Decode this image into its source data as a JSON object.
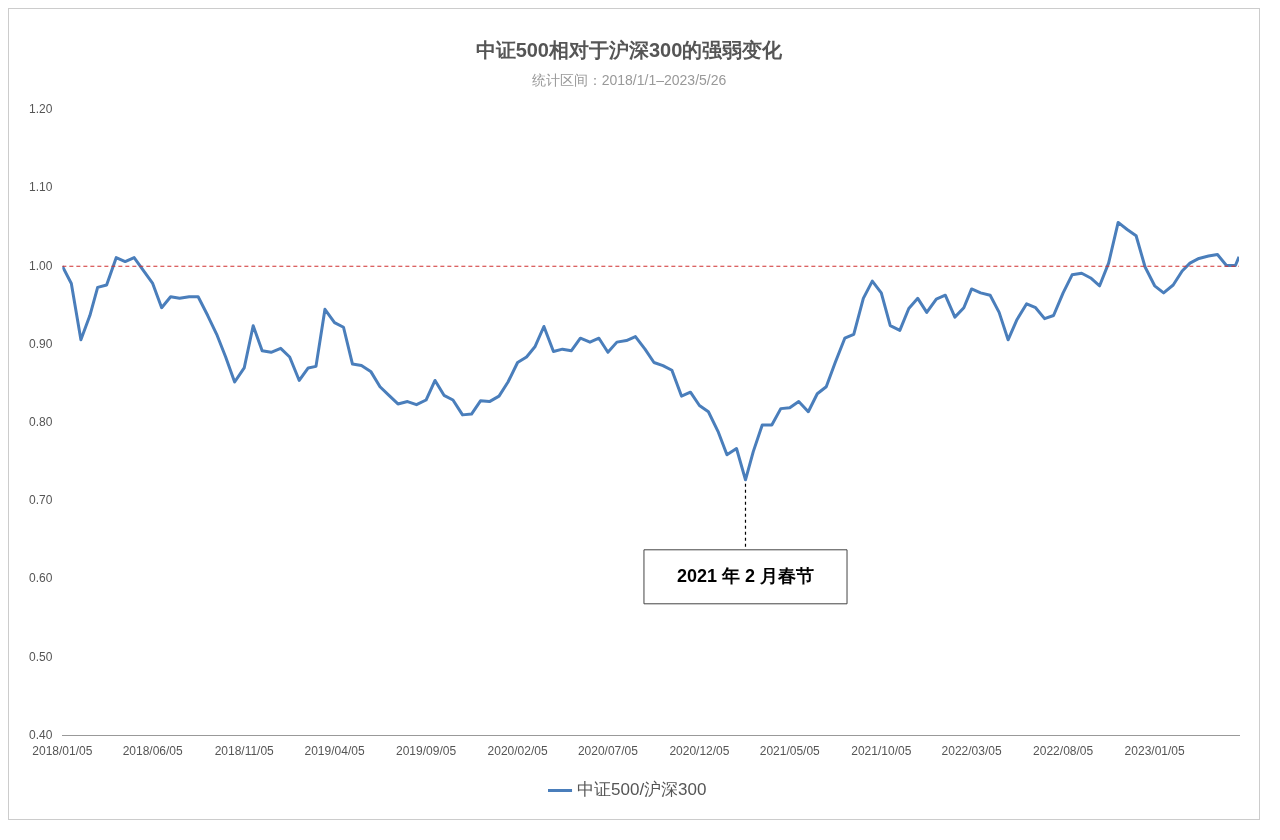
{
  "chart_data": {
    "type": "line",
    "title": "中证500相对于沪深300的强弱变化",
    "subtitle": "统计区间：2018/1/1–2023/5/26",
    "x": [
      "2018-01-05",
      "2018-01-20",
      "2018-02-05",
      "2018-02-20",
      "2018-03-05",
      "2018-03-20",
      "2018-04-05",
      "2018-04-20",
      "2018-05-05",
      "2018-05-20",
      "2018-06-05",
      "2018-06-20",
      "2018-07-05",
      "2018-07-20",
      "2018-08-05",
      "2018-08-20",
      "2018-09-05",
      "2018-09-20",
      "2018-10-05",
      "2018-10-20",
      "2018-11-05",
      "2018-11-20",
      "2018-12-05",
      "2018-12-20",
      "2019-01-05",
      "2019-01-20",
      "2019-02-05",
      "2019-02-20",
      "2019-03-05",
      "2019-03-20",
      "2019-04-05",
      "2019-04-20",
      "2019-05-05",
      "2019-05-20",
      "2019-06-05",
      "2019-06-20",
      "2019-07-05",
      "2019-07-20",
      "2019-08-05",
      "2019-08-20",
      "2019-09-05",
      "2019-09-20",
      "2019-10-05",
      "2019-10-20",
      "2019-11-05",
      "2019-11-20",
      "2019-12-05",
      "2019-12-20",
      "2020-01-05",
      "2020-01-20",
      "2020-02-05",
      "2020-02-20",
      "2020-03-05",
      "2020-03-20",
      "2020-04-05",
      "2020-04-20",
      "2020-05-05",
      "2020-05-20",
      "2020-06-05",
      "2020-06-20",
      "2020-07-05",
      "2020-07-20",
      "2020-08-05",
      "2020-08-20",
      "2020-09-05",
      "2020-09-20",
      "2020-10-05",
      "2020-10-20",
      "2020-11-05",
      "2020-11-20",
      "2020-12-05",
      "2020-12-20",
      "2021-01-05",
      "2021-01-20",
      "2021-02-05",
      "2021-02-20",
      "2021-03-05",
      "2021-03-20",
      "2021-04-05",
      "2021-04-20",
      "2021-05-05",
      "2021-05-20",
      "2021-06-05",
      "2021-06-20",
      "2021-07-05",
      "2021-07-20",
      "2021-08-05",
      "2021-08-20",
      "2021-09-05",
      "2021-09-20",
      "2021-10-05",
      "2021-10-20",
      "2021-11-05",
      "2021-11-20",
      "2021-12-05",
      "2021-12-20",
      "2022-01-05",
      "2022-01-20",
      "2022-02-05",
      "2022-02-20",
      "2022-03-05",
      "2022-03-20",
      "2022-04-05",
      "2022-04-20",
      "2022-05-05",
      "2022-05-20",
      "2022-06-05",
      "2022-06-20",
      "2022-07-05",
      "2022-07-20",
      "2022-08-05",
      "2022-08-20",
      "2022-09-05",
      "2022-09-20",
      "2022-10-05",
      "2022-10-20",
      "2022-11-05",
      "2022-11-20",
      "2022-12-05",
      "2022-12-20",
      "2023-01-05",
      "2023-01-20",
      "2023-02-05",
      "2023-02-20",
      "2023-03-05",
      "2023-03-20",
      "2023-04-05",
      "2023-04-20",
      "2023-05-05",
      "2023-05-20",
      "2023-05-26"
    ],
    "series": [
      {
        "name": "中证500/沪深300",
        "color": "#4a7ebb",
        "values": [
          1.0,
          0.978,
          0.906,
          0.937,
          0.973,
          0.976,
          1.011,
          1.006,
          1.011,
          0.995,
          0.978,
          0.947,
          0.961,
          0.959,
          0.961,
          0.961,
          0.937,
          0.913,
          0.884,
          0.852,
          0.87,
          0.924,
          0.892,
          0.89,
          0.895,
          0.884,
          0.854,
          0.87,
          0.872,
          0.945,
          0.928,
          0.922,
          0.875,
          0.873,
          0.865,
          0.846,
          0.835,
          0.824,
          0.827,
          0.823,
          0.829,
          0.854,
          0.835,
          0.829,
          0.81,
          0.811,
          0.828,
          0.827,
          0.834,
          0.852,
          0.877,
          0.884,
          0.897,
          0.923,
          0.891,
          0.894,
          0.892,
          0.908,
          0.903,
          0.908,
          0.89,
          0.903,
          0.905,
          0.91,
          0.894,
          0.877,
          0.873,
          0.867,
          0.834,
          0.839,
          0.822,
          0.814,
          0.789,
          0.759,
          0.767,
          0.727,
          0.763,
          0.797,
          0.797,
          0.818,
          0.819,
          0.827,
          0.814,
          0.837,
          0.846,
          0.877,
          0.908,
          0.913,
          0.959,
          0.981,
          0.966,
          0.924,
          0.918,
          0.946,
          0.959,
          0.941,
          0.958,
          0.963,
          0.935,
          0.947,
          0.971,
          0.966,
          0.963,
          0.941,
          0.906,
          0.932,
          0.952,
          0.947,
          0.933,
          0.937,
          0.966,
          0.989,
          0.991,
          0.985,
          0.975,
          1.004,
          1.056,
          1.047,
          1.039,
          0.999,
          0.975,
          0.966,
          0.976,
          0.994,
          1.004,
          1.01,
          1.013,
          1.015,
          1.001,
          1.001,
          1.012
        ]
      }
    ],
    "xlim": [
      "2018-01-05",
      "2023-05-26"
    ],
    "xticks": [
      {
        "value": "2018-01-05",
        "label": "2018/01/05"
      },
      {
        "value": "2018-06-05",
        "label": "2018/06/05"
      },
      {
        "value": "2018-11-05",
        "label": "2018/11/05"
      },
      {
        "value": "2019-04-05",
        "label": "2019/04/05"
      },
      {
        "value": "2019-09-05",
        "label": "2019/09/05"
      },
      {
        "value": "2020-02-05",
        "label": "2020/02/05"
      },
      {
        "value": "2020-07-05",
        "label": "2020/07/05"
      },
      {
        "value": "2020-12-05",
        "label": "2020/12/05"
      },
      {
        "value": "2021-05-05",
        "label": "2021/05/05"
      },
      {
        "value": "2021-10-05",
        "label": "2021/10/05"
      },
      {
        "value": "2022-03-05",
        "label": "2022/03/05"
      },
      {
        "value": "2022-08-05",
        "label": "2022/08/05"
      },
      {
        "value": "2023-01-05",
        "label": "2023/01/05"
      }
    ],
    "ylim": [
      0.4,
      1.2
    ],
    "yticks": [
      {
        "value": 0.4,
        "label": "0.40"
      },
      {
        "value": 0.5,
        "label": "0.50"
      },
      {
        "value": 0.6,
        "label": "0.60"
      },
      {
        "value": 0.7,
        "label": "0.70"
      },
      {
        "value": 0.8,
        "label": "0.80"
      },
      {
        "value": 0.9,
        "label": "0.90"
      },
      {
        "value": 1.0,
        "label": "1.00"
      },
      {
        "value": 1.1,
        "label": "1.10"
      },
      {
        "value": 1.2,
        "label": "1.20"
      }
    ],
    "ref_lines": [
      {
        "axis": "y",
        "value": 1.0,
        "color": "#d03030",
        "line_style": "dashed"
      }
    ],
    "annotations": [
      {
        "text": "2021 年 2 月春节",
        "x": "2021-02-20",
        "y": 0.727
      }
    ],
    "legend": "bottom",
    "marker": "none",
    "line_style": "solid"
  }
}
